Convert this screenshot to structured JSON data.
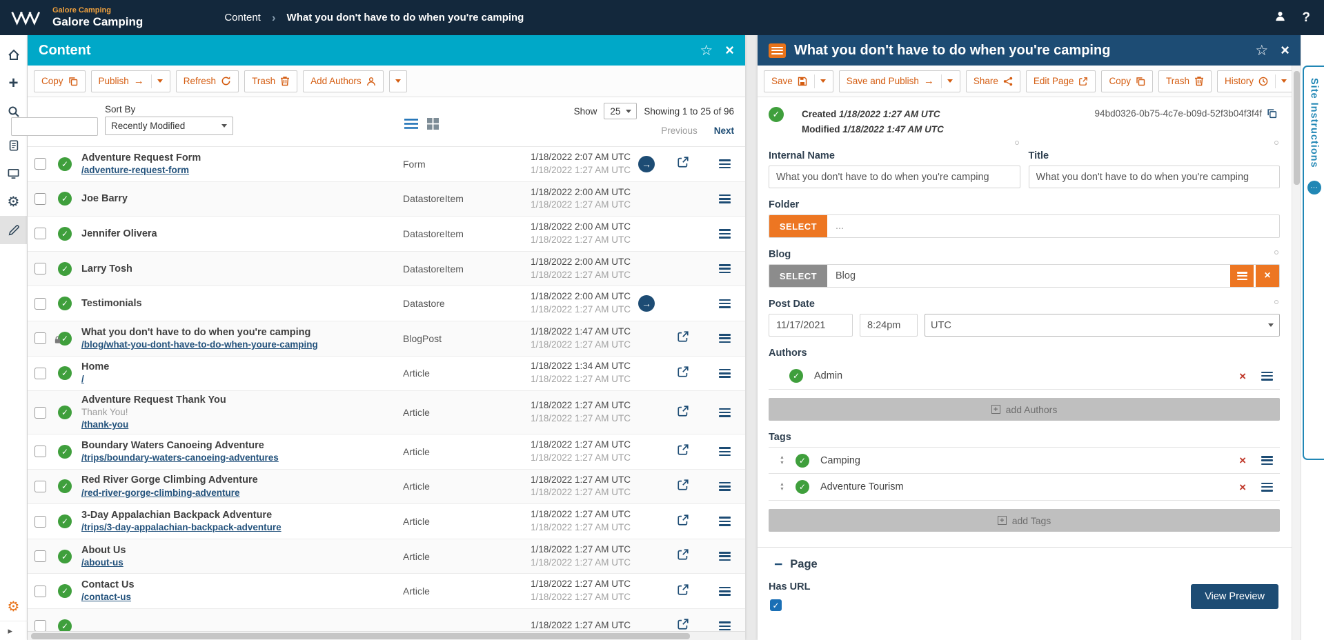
{
  "colors": {
    "header_bar": "#13283c",
    "accent_orange": "#d45c10",
    "button_orange": "#ed7622",
    "panel_cyan": "#00a8c8",
    "panel_navy": "#1d4c74",
    "status_green": "#3f9f3c",
    "danger_red": "#c0392b",
    "link_navy": "#23527c"
  },
  "header": {
    "brand_small": "Galore Camping",
    "brand_large": "Galore Camping",
    "breadcrumb_section": "Content",
    "breadcrumb_page": "What you don't have to do when you're camping",
    "help_label": "?"
  },
  "left_rail": {
    "items": [
      "home",
      "add",
      "search",
      "content",
      "site-browser",
      "settings",
      "marketing"
    ],
    "active": "marketing",
    "bottom_items": [
      "system-settings",
      "expand"
    ]
  },
  "content_panel": {
    "title": "Content",
    "toolbar": {
      "copy": "Copy",
      "publish": "Publish",
      "refresh": "Refresh",
      "trash": "Trash",
      "add_authors": "Add Authors"
    },
    "controls": {
      "sort_by_label": "Sort By",
      "sort_by_value": "Recently Modified",
      "show_label": "Show",
      "show_value": "25",
      "showing_text": "Showing 1 to 25 of 96",
      "previous_label": "Previous",
      "next_label": "Next"
    },
    "rows": [
      {
        "title": "Adventure Request Form",
        "slug": "/adventure-request-form",
        "type": "Form",
        "modified": "1/18/2022 2:07 AM UTC",
        "created": "1/18/2022 1:27 AM UTC",
        "arrow": true,
        "external": true
      },
      {
        "title": "Joe Barry",
        "type": "DatastoreItem",
        "modified": "1/18/2022 2:00 AM UTC",
        "created": "1/18/2022 1:27 AM UTC"
      },
      {
        "title": "Jennifer Olivera",
        "type": "DatastoreItem",
        "modified": "1/18/2022 2:00 AM UTC",
        "created": "1/18/2022 1:27 AM UTC"
      },
      {
        "title": "Larry Tosh",
        "type": "DatastoreItem",
        "modified": "1/18/2022 2:00 AM UTC",
        "created": "1/18/2022 1:27 AM UTC"
      },
      {
        "title": "Testimonials",
        "type": "Datastore",
        "modified": "1/18/2022 2:00 AM UTC",
        "created": "1/18/2022 1:27 AM UTC",
        "arrow": true
      },
      {
        "title": "What you don't have to do when you're camping",
        "slug": "/blog/what-you-dont-have-to-do-when-youre-camping",
        "type": "BlogPost",
        "modified": "1/18/2022 1:47 AM UTC",
        "created": "1/18/2022 1:27 AM UTC",
        "external": true,
        "locked": true
      },
      {
        "title": "Home",
        "slug": "/",
        "type": "Article",
        "modified": "1/18/2022 1:34 AM UTC",
        "created": "1/18/2022 1:27 AM UTC",
        "external": true
      },
      {
        "title": "Adventure Request Thank You",
        "subtitle": "Thank You!",
        "slug": "/thank-you",
        "type": "Article",
        "modified": "1/18/2022 1:27 AM UTC",
        "created": "1/18/2022 1:27 AM UTC",
        "external": true
      },
      {
        "title": "Boundary Waters Canoeing Adventure",
        "slug": "/trips/boundary-waters-canoeing-adventures",
        "type": "Article",
        "modified": "1/18/2022 1:27 AM UTC",
        "created": "1/18/2022 1:27 AM UTC",
        "external": true
      },
      {
        "title": "Red River Gorge Climbing Adventure",
        "slug": "/red-river-gorge-climbing-adventure",
        "type": "Article",
        "modified": "1/18/2022 1:27 AM UTC",
        "created": "1/18/2022 1:27 AM UTC",
        "external": true
      },
      {
        "title": "3-Day Appalachian Backpack Adventure",
        "slug": "/trips/3-day-appalachian-backpack-adventure",
        "type": "Article",
        "modified": "1/18/2022 1:27 AM UTC",
        "created": "1/18/2022 1:27 AM UTC",
        "external": true
      },
      {
        "title": "About Us",
        "slug": "/about-us",
        "type": "Article",
        "modified": "1/18/2022 1:27 AM UTC",
        "created": "1/18/2022 1:27 AM UTC",
        "external": true
      },
      {
        "title": "Contact Us",
        "slug": "/contact-us",
        "type": "Article",
        "modified": "1/18/2022 1:27 AM UTC",
        "created": "1/18/2022 1:27 AM UTC",
        "external": true
      },
      {
        "title": "",
        "type": "",
        "modified": "1/18/2022 1:27 AM UTC",
        "created": "",
        "external": true,
        "partial": true
      }
    ]
  },
  "detail_panel": {
    "title": "What you don't have to do when you're camping",
    "toolbar": {
      "save": "Save",
      "save_and_publish": "Save and Publish",
      "share": "Share",
      "edit_page": "Edit Page",
      "copy": "Copy",
      "trash": "Trash",
      "history": "History"
    },
    "meta": {
      "created_label": "Created",
      "created_value": "1/18/2022 1:27 AM UTC",
      "modified_label": "Modified",
      "modified_value": "1/18/2022 1:47 AM UTC",
      "content_id": "94bd0326-0b75-4c7e-b09d-52f3b04f3f4f"
    },
    "form": {
      "internal_name": {
        "label": "Internal Name",
        "value": "What you don't have to do when you're camping"
      },
      "title": {
        "label": "Title",
        "value": "What you don't have to do when you're camping"
      },
      "folder": {
        "label": "Folder",
        "select_label": "SELECT",
        "value": "..."
      },
      "blog": {
        "label": "Blog",
        "select_label": "SELECT",
        "value": "Blog"
      },
      "post_date": {
        "label": "Post Date",
        "date": "11/17/2021",
        "time": "8:24pm",
        "timezone": "UTC"
      },
      "authors": {
        "label": "Authors",
        "items": [
          {
            "name": "Admin"
          }
        ],
        "add_label": "add Authors"
      },
      "tags": {
        "label": "Tags",
        "items": [
          {
            "name": "Camping"
          },
          {
            "name": "Adventure Tourism"
          }
        ],
        "add_label": "add Tags"
      },
      "page_section": {
        "label": "Page"
      },
      "has_url": {
        "label": "Has URL",
        "checked": true
      },
      "view_preview_label": "View Preview"
    }
  },
  "right_rail": {
    "tab_label": "Site Instructions"
  }
}
